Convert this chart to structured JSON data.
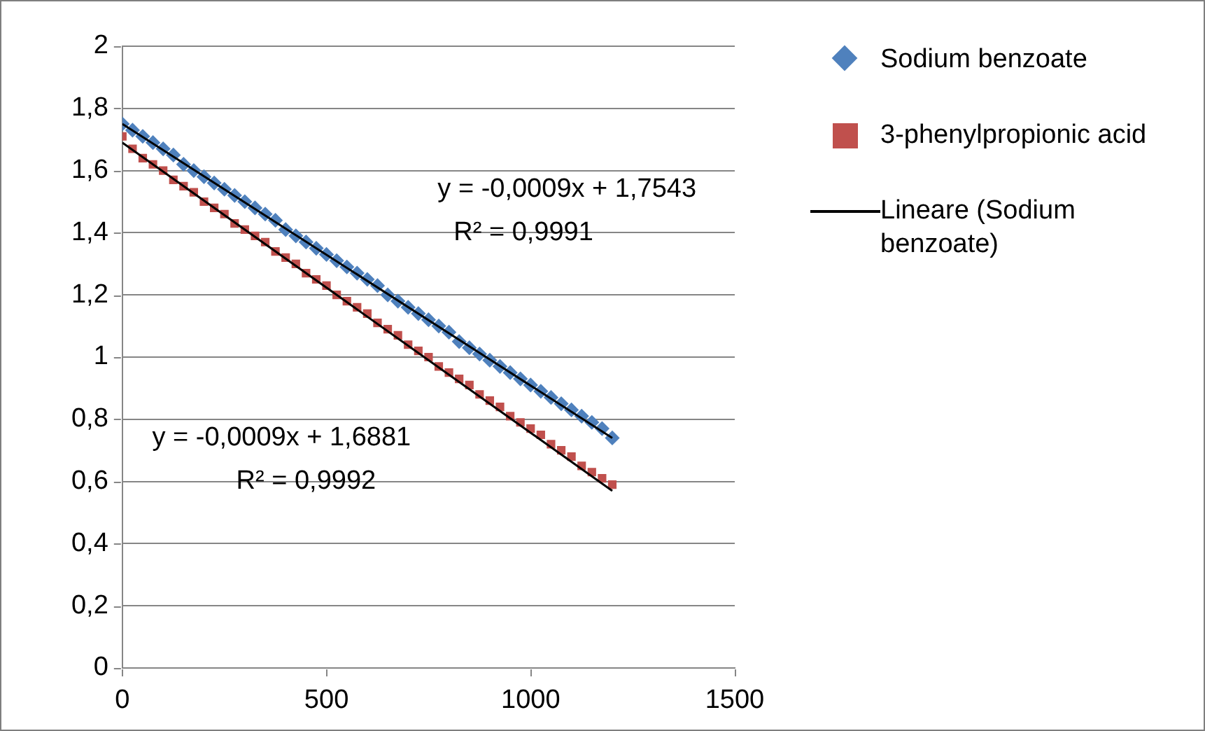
{
  "chart_data": {
    "type": "scatter",
    "xlim": [
      0,
      1500
    ],
    "xticks": [
      0,
      500,
      1000,
      1500
    ],
    "ylim": [
      0,
      2
    ],
    "yticks": [
      0,
      {
        "value": 0.2,
        "label": "0,2"
      },
      {
        "value": 0.4,
        "label": "0,4"
      },
      {
        "value": 0.6,
        "label": "0,6"
      },
      {
        "value": 0.8,
        "label": "0,8"
      },
      1,
      {
        "value": 1.2,
        "label": "1,2"
      },
      {
        "value": 1.4,
        "label": "1,4"
      },
      {
        "value": 1.6,
        "label": "1,6"
      },
      {
        "value": 1.8,
        "label": "1,8"
      },
      2
    ],
    "grid": "y",
    "legend": "right",
    "series": [
      {
        "name": "Sodium benzoate",
        "color": "#4f81bd",
        "marker": "diamond",
        "x": [
          0,
          25,
          50,
          75,
          100,
          125,
          150,
          175,
          200,
          225,
          250,
          275,
          300,
          325,
          350,
          375,
          400,
          425,
          450,
          475,
          500,
          525,
          550,
          575,
          600,
          625,
          650,
          675,
          700,
          725,
          750,
          775,
          800,
          825,
          850,
          875,
          900,
          925,
          950,
          975,
          1000,
          1025,
          1050,
          1075,
          1100,
          1125,
          1150,
          1175,
          1200
        ],
        "values": [
          1.75,
          1.73,
          1.71,
          1.69,
          1.67,
          1.65,
          1.62,
          1.6,
          1.58,
          1.56,
          1.54,
          1.52,
          1.5,
          1.48,
          1.46,
          1.44,
          1.41,
          1.39,
          1.37,
          1.35,
          1.33,
          1.31,
          1.29,
          1.27,
          1.25,
          1.23,
          1.2,
          1.18,
          1.16,
          1.14,
          1.12,
          1.1,
          1.08,
          1.05,
          1.03,
          1.01,
          0.99,
          0.97,
          0.95,
          0.93,
          0.91,
          0.89,
          0.87,
          0.85,
          0.83,
          0.81,
          0.79,
          0.77,
          0.74
        ]
      },
      {
        "name": "3-phenylpropionic acid",
        "color": "#c0504d",
        "marker": "square",
        "x": [
          0,
          25,
          50,
          75,
          100,
          125,
          150,
          175,
          200,
          225,
          250,
          275,
          300,
          325,
          350,
          375,
          400,
          425,
          450,
          475,
          500,
          525,
          550,
          575,
          600,
          625,
          650,
          675,
          700,
          725,
          750,
          775,
          800,
          825,
          850,
          875,
          900,
          925,
          950,
          975,
          1000,
          1025,
          1050,
          1075,
          1100,
          1125,
          1150,
          1175,
          1200
        ],
        "values": [
          1.71,
          1.67,
          1.64,
          1.62,
          1.6,
          1.57,
          1.55,
          1.53,
          1.5,
          1.48,
          1.46,
          1.43,
          1.41,
          1.39,
          1.37,
          1.34,
          1.32,
          1.3,
          1.27,
          1.25,
          1.23,
          1.2,
          1.18,
          1.16,
          1.14,
          1.11,
          1.09,
          1.07,
          1.04,
          1.02,
          1,
          0.97,
          0.95,
          0.93,
          0.91,
          0.88,
          0.86,
          0.84,
          0.81,
          0.79,
          0.77,
          0.75,
          0.72,
          0.7,
          0.68,
          0.65,
          0.63,
          0.61,
          0.59
        ]
      },
      {
        "name": "Lineare (Sodium benzoate)",
        "type": "line",
        "color": "#000000",
        "marker": "none",
        "x": [
          0,
          1200
        ],
        "values": [
          1.75,
          0.74
        ]
      },
      {
        "type": "line",
        "color": "#000000",
        "marker": "none",
        "x": [
          0,
          1200
        ],
        "values": [
          1.69,
          0.57
        ]
      }
    ],
    "annotations": [
      "y = -0,0009x + 1,7543",
      "R² = 0,9991",
      "y = -0,0009x + 1,6881",
      "R² = 0,9992"
    ]
  }
}
